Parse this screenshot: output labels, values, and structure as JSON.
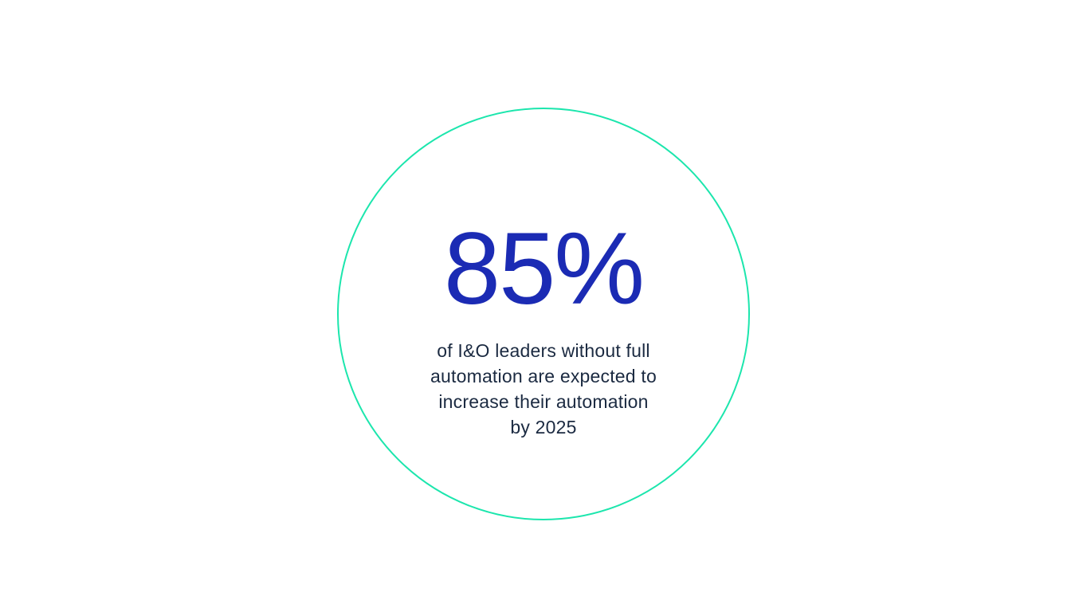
{
  "stat_card": {
    "value": "85%",
    "description_lines": [
      "of I&O leaders without full",
      "automation are expected to",
      "increase their automation",
      "by 2025"
    ],
    "colors": {
      "circle_stroke": "#1ce6ad",
      "value_text": "#1b2bb4",
      "description_text": "#1b2a41",
      "background": "#ffffff"
    }
  }
}
